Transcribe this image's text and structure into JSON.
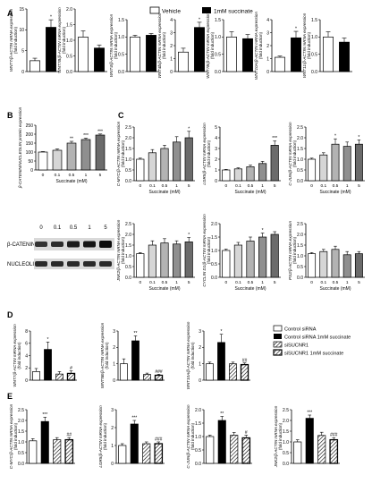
{
  "legend_top": {
    "vehicle": "Vehicle",
    "succinate": "1mM succinate"
  },
  "legend_d": [
    "Control siRNA",
    "Control siRNA 1mM succinate",
    "siSUCNR1",
    "siSUCNR1 1mM succinate"
  ],
  "panel_labels": {
    "A": "A",
    "B": "B",
    "C": "C",
    "D": "D",
    "E": "E"
  },
  "blot": {
    "lane_labels": [
      "0",
      "0.1",
      "0.5",
      "1",
      "5"
    ],
    "row_labels": [
      "β-CATENIN",
      "NUCLEOLIN"
    ]
  },
  "chart_data": [
    {
      "panel": "A",
      "type": "bar",
      "ylabel": "WNT7/β-ACTIN mRNA expression",
      "ylabel2": "(fold induction)",
      "ylim": [
        0,
        15
      ],
      "yticks": [
        "0",
        "5",
        "10",
        "15"
      ],
      "categories": [
        "Vehicle",
        "1mM succinate"
      ],
      "values": [
        2.6,
        10.6
      ],
      "errors": [
        0.6,
        1.8
      ],
      "marks": [
        "",
        "*"
      ]
    },
    {
      "panel": "A",
      "type": "bar",
      "ylabel": "WNT7B/β-ACTIN mRNA expression",
      "ylabel2": "(fold induction)",
      "ylim": [
        0,
        2.0
      ],
      "yticks": [
        "0.0",
        "0.5",
        "1.0",
        "1.5",
        "2.0"
      ],
      "categories": [
        "Vehicle",
        "1mM succinate"
      ],
      "values": [
        1.1,
        0.75
      ],
      "errors": [
        0.2,
        0.1
      ],
      "marks": [
        "",
        ""
      ]
    },
    {
      "panel": "A",
      "type": "bar",
      "ylabel": "WNT4/β-ACTIN mRNA expression",
      "ylabel2": "(fold induction)",
      "ylim": [
        0,
        1.5
      ],
      "yticks": [
        "0.0",
        "0.5",
        "1.0",
        "1.5"
      ],
      "categories": [
        "Vehicle",
        "1mM succinate"
      ],
      "values": [
        1.0,
        1.05
      ],
      "errors": [
        0.05,
        0.05
      ],
      "marks": [
        "",
        ""
      ]
    },
    {
      "panel": "A",
      "type": "bar",
      "ylabel": "WNT4b/β-ACTIN mRNA expression",
      "ylabel2": "(fold induction)",
      "ylim": [
        0,
        4
      ],
      "yticks": [
        "0",
        "1",
        "2",
        "3",
        "4"
      ],
      "categories": [
        "Vehicle",
        "1mM succinate"
      ],
      "values": [
        1.5,
        3.4
      ],
      "errors": [
        0.3,
        0.4
      ],
      "marks": [
        "",
        "*"
      ]
    },
    {
      "panel": "A",
      "type": "bar",
      "ylabel": "WNT7B/β-ACTIN mRNA expression",
      "ylabel2": "(fold induction)",
      "ylim": [
        0,
        1.5
      ],
      "yticks": [
        "0.0",
        "0.5",
        "1.0",
        "1.5"
      ],
      "categories": [
        "Vehicle",
        "1mM succinate"
      ],
      "values": [
        1.0,
        0.95
      ],
      "errors": [
        0.15,
        0.12
      ],
      "marks": [
        "",
        ""
      ]
    },
    {
      "panel": "A",
      "type": "bar",
      "ylabel": "WNT10A/β-ACTIN mRNA expression",
      "ylabel2": "(fold induction)",
      "ylim": [
        0,
        4
      ],
      "yticks": [
        "0",
        "1",
        "2",
        "3",
        "4"
      ],
      "categories": [
        "Vehicle",
        "1mM succinate"
      ],
      "values": [
        1.1,
        2.6
      ],
      "errors": [
        0.1,
        0.5
      ],
      "marks": [
        "",
        "*"
      ]
    },
    {
      "panel": "A",
      "type": "bar",
      "ylabel": "WNT11/β-ACTIN mRNA expression",
      "ylabel2": "(fold induction)",
      "ylim": [
        0,
        1.5
      ],
      "yticks": [
        "0.0",
        "0.5",
        "1.0",
        "1.5"
      ],
      "categories": [
        "Vehicle",
        "1mM succinate"
      ],
      "values": [
        1.0,
        0.85
      ],
      "errors": [
        0.15,
        0.12
      ],
      "marks": [
        "",
        ""
      ]
    },
    {
      "panel": "B",
      "type": "bar",
      "ylabel": "β-CATENIN/NUCLEOLIN protein expression",
      "ylabel2": "",
      "xlabel": "Succinate (mM)",
      "ylim": [
        0,
        250
      ],
      "yticks": [
        "0",
        "50",
        "100",
        "150",
        "200",
        "250"
      ],
      "categories": [
        "0",
        "0.1",
        "0.5",
        "1",
        "5"
      ],
      "values": [
        100,
        110,
        150,
        170,
        195
      ],
      "errors": [
        3,
        8,
        10,
        8,
        6
      ],
      "marks": [
        "",
        "",
        "**",
        "***",
        "***"
      ]
    },
    {
      "panel": "C",
      "type": "bar",
      "ylabel": "C-MYC/β-ACTIN mRNA expression",
      "ylabel2": "(fold induction)",
      "xlabel": "Succinate (mM)",
      "ylim": [
        0,
        2.5
      ],
      "yticks": [
        "0.0",
        "0.5",
        "1.0",
        "1.5",
        "2.0",
        "2.5"
      ],
      "categories": [
        "0",
        "0.1",
        "0.5",
        "1",
        "5"
      ],
      "values": [
        1.0,
        1.3,
        1.5,
        1.8,
        2.0
      ],
      "errors": [
        0.05,
        0.15,
        0.15,
        0.25,
        0.3
      ],
      "marks": [
        "",
        "",
        "",
        "",
        "*"
      ]
    },
    {
      "panel": "C",
      "type": "bar",
      "ylabel": "LGR5/β-ACTIN mRNA expression",
      "ylabel2": "(fold induction)",
      "xlabel": "Succinate (mM)",
      "ylim": [
        0,
        5
      ],
      "yticks": [
        "0",
        "1",
        "2",
        "3",
        "4",
        "5"
      ],
      "categories": [
        "0",
        "0.1",
        "0.5",
        "1",
        "5"
      ],
      "values": [
        1.0,
        1.1,
        1.3,
        1.6,
        3.3
      ],
      "errors": [
        0.05,
        0.1,
        0.15,
        0.2,
        0.4
      ],
      "marks": [
        "",
        "",
        "",
        "",
        "***"
      ]
    },
    {
      "panel": "C",
      "type": "bar",
      "ylabel": "C-JUN/β-ACTIN mRNA expression",
      "ylabel2": "(fold induction)",
      "xlabel": "Succinate (mM)",
      "ylim": [
        0,
        2.5
      ],
      "yticks": [
        "0.0",
        "0.5",
        "1.0",
        "1.5",
        "2.0",
        "2.5"
      ],
      "categories": [
        "0",
        "0.1",
        "0.5",
        "1",
        "5"
      ],
      "values": [
        1.0,
        1.2,
        1.7,
        1.6,
        1.7
      ],
      "errors": [
        0.05,
        0.1,
        0.25,
        0.2,
        0.2
      ],
      "marks": [
        "",
        "",
        "*",
        "",
        "*"
      ]
    },
    {
      "panel": "C",
      "type": "bar",
      "ylabel": "JNK2/β-ACTIN mRNA expression",
      "ylabel2": "(fold induction)",
      "xlabel": "Succinate (mM)",
      "ylim": [
        0,
        2.5
      ],
      "yticks": [
        "0.0",
        "0.5",
        "1.0",
        "1.5",
        "2.0",
        "2.5"
      ],
      "categories": [
        "0",
        "0.1",
        "0.5",
        "1",
        "5"
      ],
      "values": [
        1.1,
        1.5,
        1.6,
        1.55,
        1.65
      ],
      "errors": [
        0.05,
        0.2,
        0.2,
        0.15,
        0.2
      ],
      "marks": [
        "",
        "",
        "",
        "",
        "*"
      ]
    },
    {
      "panel": "C",
      "type": "bar",
      "ylabel": "CYCLIN D1/β-ACTIN mRNA expression",
      "ylabel2": "(fold induction)",
      "xlabel": "Succinate (mM)",
      "ylim": [
        0,
        2.0
      ],
      "yticks": [
        "0.0",
        "0.5",
        "1.0",
        "1.5",
        "2.0"
      ],
      "categories": [
        "0",
        "0.1",
        "0.5",
        "1",
        "5"
      ],
      "values": [
        1.0,
        1.2,
        1.35,
        1.5,
        1.6
      ],
      "errors": [
        0.05,
        0.1,
        0.15,
        0.15,
        0.1
      ],
      "marks": [
        "",
        "",
        "",
        "*",
        ""
      ]
    },
    {
      "panel": "C",
      "type": "bar",
      "ylabel": "PS2/β-ACTIN mRNA expression",
      "ylabel2": "(fold induction)",
      "xlabel": "Succinate (mM)",
      "ylim": [
        0,
        2.5
      ],
      "yticks": [
        "0.0",
        "0.5",
        "1.0",
        "1.5",
        "2.0",
        "2.5"
      ],
      "categories": [
        "0",
        "0.1",
        "0.5",
        "1",
        "5"
      ],
      "values": [
        1.1,
        1.2,
        1.3,
        1.05,
        1.1
      ],
      "errors": [
        0.05,
        0.1,
        0.15,
        0.15,
        0.1
      ],
      "marks": [
        "",
        "",
        "",
        "",
        ""
      ]
    },
    {
      "panel": "D",
      "type": "bar",
      "ylabel": "WNT7/β-ACTIN mRNA expression",
      "ylabel2": "(fold induction)",
      "ylim": [
        0,
        8
      ],
      "yticks": [
        "0",
        "2",
        "4",
        "6",
        "8"
      ],
      "categories": [
        "Control siRNA",
        "Control siRNA 1mM succinate",
        "siSUCNR1",
        "siSUCNR1 1mM succinate"
      ],
      "values": [
        1.4,
        5.0,
        1.0,
        1.1
      ],
      "errors": [
        0.5,
        1.2,
        0.4,
        0.4
      ],
      "marks": [
        "",
        "*",
        "",
        "#"
      ]
    },
    {
      "panel": "D",
      "type": "bar",
      "ylabel": "WNT5B/β-ACTIN mRNA expression",
      "ylabel2": "(fold induction)",
      "ylim": [
        0,
        3
      ],
      "yticks": [
        "0",
        "1",
        "2",
        "3"
      ],
      "categories": [
        "Control siRNA",
        "Control siRNA 1mM succinate",
        "siSUCNR1",
        "siSUCNR1 1mM succinate"
      ],
      "values": [
        1.0,
        2.4,
        0.35,
        0.3
      ],
      "errors": [
        0.3,
        0.3,
        0.08,
        0.06
      ],
      "marks": [
        "",
        "**",
        "",
        "###"
      ]
    },
    {
      "panel": "D",
      "type": "bar",
      "ylabel": "WNT10A/β-ACTIN mRNA expression",
      "ylabel2": "(fold induction)",
      "ylim": [
        0,
        3
      ],
      "yticks": [
        "0",
        "1",
        "2",
        "3"
      ],
      "categories": [
        "Control siRNA",
        "Control siRNA 1mM succinate",
        "siSUCNR1",
        "siSUCNR1 1mM succinate"
      ],
      "values": [
        1.0,
        2.3,
        1.0,
        0.95
      ],
      "errors": [
        0.1,
        0.5,
        0.1,
        0.1
      ],
      "marks": [
        "",
        "*",
        "",
        "##"
      ]
    },
    {
      "panel": "E",
      "type": "bar",
      "ylabel": "C-MYC/β-ACTIN mRNA expression",
      "ylabel2": "(fold induction)",
      "ylim": [
        0,
        2.5
      ],
      "yticks": [
        "0.0",
        "0.5",
        "1.0",
        "1.5",
        "2.0",
        "2.5"
      ],
      "categories": [
        "Control siRNA",
        "Control siRNA 1mM succinate",
        "siSUCNR1",
        "siSUCNR1 1mM succinate"
      ],
      "values": [
        1.05,
        1.95,
        1.1,
        1.1
      ],
      "errors": [
        0.1,
        0.2,
        0.1,
        0.1
      ],
      "marks": [
        "",
        "***",
        "",
        "##"
      ]
    },
    {
      "panel": "E",
      "type": "bar",
      "ylabel": "LGR5/β-ACTIN mRNA expression",
      "ylabel2": "(fold induction)",
      "ylim": [
        0,
        3
      ],
      "yticks": [
        "0",
        "1",
        "2",
        "3"
      ],
      "categories": [
        "Control siRNA",
        "Control siRNA 1mM succinate",
        "siSUCNR1",
        "siSUCNR1 1mM succinate"
      ],
      "values": [
        1.0,
        2.2,
        1.1,
        1.1
      ],
      "errors": [
        0.1,
        0.2,
        0.1,
        0.1
      ],
      "marks": [
        "",
        "***",
        "",
        "###"
      ]
    },
    {
      "panel": "E",
      "type": "bar",
      "ylabel": "C-JUN/β-ACTIN mRNA expression",
      "ylabel2": "(fold induction)",
      "ylim": [
        0,
        2.0
      ],
      "yticks": [
        "0.0",
        "0.5",
        "1.0",
        "1.5",
        "2.0"
      ],
      "categories": [
        "Control siRNA",
        "Control siRNA 1mM succinate",
        "siSUCNR1",
        "siSUCNR1 1mM succinate"
      ],
      "values": [
        1.0,
        1.6,
        1.05,
        0.95
      ],
      "errors": [
        0.05,
        0.15,
        0.1,
        0.1
      ],
      "marks": [
        "",
        "**",
        "",
        "#"
      ]
    },
    {
      "panel": "E",
      "type": "bar",
      "ylabel": "JNK2/β-ACTIN mRNA expression",
      "ylabel2": "(fold induction)",
      "ylim": [
        0,
        2.5
      ],
      "yticks": [
        "0.0",
        "0.5",
        "1.0",
        "1.5",
        "2.0",
        "2.5"
      ],
      "categories": [
        "Control siRNA",
        "Control siRNA 1mM succinate",
        "siSUCNR1",
        "siSUCNR1 1mM succinate"
      ],
      "values": [
        1.0,
        2.1,
        1.3,
        1.1
      ],
      "errors": [
        0.1,
        0.15,
        0.15,
        0.1
      ],
      "marks": [
        "",
        "***",
        "",
        "###"
      ]
    }
  ]
}
